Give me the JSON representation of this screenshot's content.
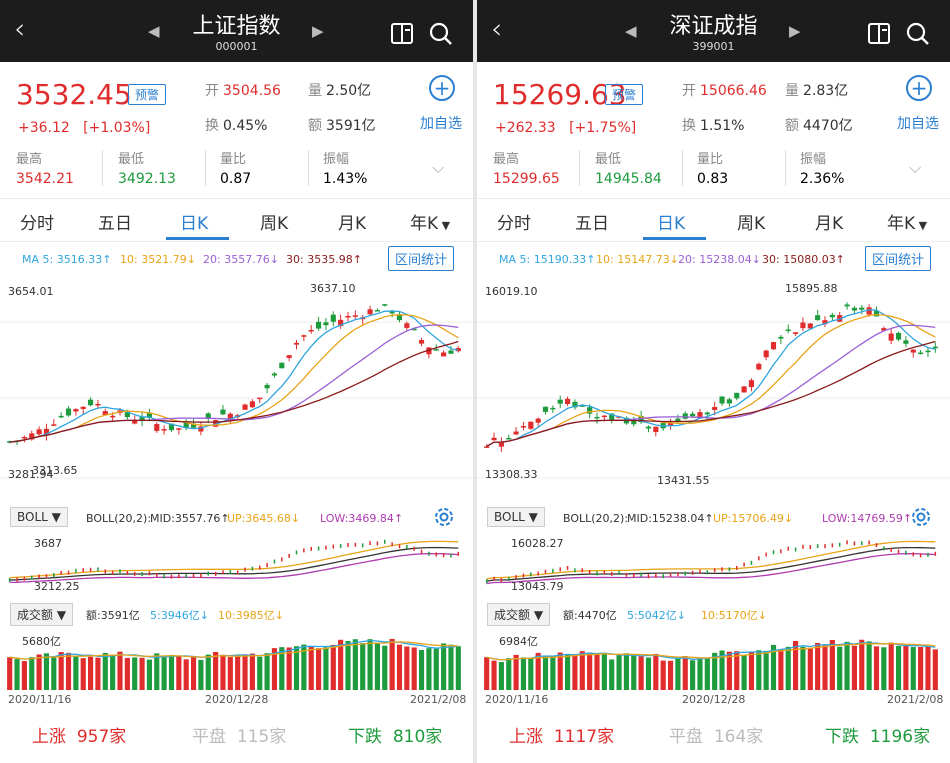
{
  "panels": [
    {
      "name": "上证指数",
      "code": "000001",
      "price": "3532.45",
      "alert": "预警",
      "change": "+36.12",
      "change_pct": "[+1.03%]",
      "open_label": "开",
      "open": "3504.56",
      "volume_label": "量",
      "volume": "2.50亿",
      "turnover_label": "换",
      "turnover": "0.45%",
      "amount_label": "额",
      "amount": "3591亿",
      "add_label": "加自选",
      "high_label": "最高",
      "high": "3542.21",
      "low_label": "最低",
      "low": "3492.13",
      "vr_label": "量比",
      "vr": "0.87",
      "amp_label": "振幅",
      "amp": "1.43%",
      "tabs": [
        "分时",
        "五日",
        "日K",
        "周K",
        "月K",
        "年K"
      ],
      "active_tab": 2,
      "ma5": "MA 5: 3516.33↑",
      "ma10": "10: 3521.79↓",
      "ma20": "20: 3557.76↓",
      "ma30": "30: 3535.98↑",
      "range_btn": "区间统计",
      "k_top": "3654.01",
      "k_bottom": "3281.94",
      "k_peak": "3637.10",
      "k_trough": "3313.65",
      "boll_sel": "BOLL",
      "boll_param": "BOLL(20,2):",
      "boll_mid": "MID:3557.76↑",
      "boll_up": "UP:3645.68↓",
      "boll_low": "LOW:3469.84↑",
      "boll_top": "3687",
      "boll_bottom": "3212.25",
      "vol_sel": "成交额",
      "vol_amt": "额:3591亿",
      "vol_5": "5:3946亿↓",
      "vol_10": "10:3985亿↓",
      "vol_top": "5680亿",
      "dates": [
        "2020/11/16",
        "2020/12/28",
        "2021/2/08"
      ],
      "up_label": "上涨",
      "up": "957家",
      "flat_label": "平盘",
      "flat": "115家",
      "down_label": "下跌",
      "down": "810家"
    },
    {
      "name": "深证成指",
      "code": "399001",
      "price": "15269.63",
      "alert": "预警",
      "change": "+262.33",
      "change_pct": "[+1.75%]",
      "open_label": "开",
      "open": "15066.46",
      "volume_label": "量",
      "volume": "2.83亿",
      "turnover_label": "换",
      "turnover": "1.51%",
      "amount_label": "额",
      "amount": "4470亿",
      "add_label": "加自选",
      "high_label": "最高",
      "high": "15299.65",
      "low_label": "最低",
      "low": "14945.84",
      "vr_label": "量比",
      "vr": "0.83",
      "amp_label": "振幅",
      "amp": "2.36%",
      "tabs": [
        "分时",
        "五日",
        "日K",
        "周K",
        "月K",
        "年K"
      ],
      "active_tab": 2,
      "ma5": "MA 5: 15190.33↑",
      "ma10": "10: 15147.73↓",
      "ma20": "20: 15238.04↓",
      "ma30": "30: 15080.03↑",
      "range_btn": "区间统计",
      "k_top": "16019.10",
      "k_bottom": "13308.33",
      "k_peak": "15895.88",
      "k_trough": "13431.55",
      "boll_sel": "BOLL",
      "boll_param": "BOLL(20,2):",
      "boll_mid": "MID:15238.04↑",
      "boll_up": "UP:15706.49↓",
      "boll_low": "LOW:14769.59↑",
      "boll_top": "16028.27",
      "boll_bottom": "13043.79",
      "vol_sel": "成交额",
      "vol_amt": "额:4470亿",
      "vol_5": "5:5042亿↓",
      "vol_10": "10:5170亿↓",
      "vol_top": "6984亿",
      "dates": [
        "2020/11/16",
        "2020/12/28",
        "2021/2/08"
      ],
      "up_label": "上涨",
      "up": "1117家",
      "flat_label": "平盘",
      "flat": "164家",
      "down_label": "下跌",
      "down": "1196家"
    }
  ],
  "colors": {
    "up": "#e02c2c",
    "down": "#1e9b3c",
    "accent": "#2b7fd0",
    "ma5": "#2fa5e0",
    "ma10": "#e8a317",
    "ma20": "#9a5fd6",
    "ma30": "#8b1a1a"
  },
  "icons": [
    "back-arrow-icon",
    "prev-icon",
    "next-icon",
    "stock-switch-icon",
    "search-icon",
    "add-circle-icon",
    "chevron-down-icon",
    "dropdown-icon",
    "settings-gear-icon"
  ]
}
